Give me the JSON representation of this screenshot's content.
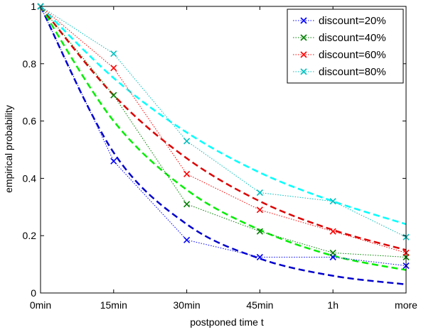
{
  "chart_data": {
    "type": "line",
    "title": "",
    "xlabel": "postponed time t",
    "ylabel": "empirical probability",
    "categories": [
      "0min",
      "15min",
      "30min",
      "45min",
      "1h",
      "more"
    ],
    "ylim": [
      0,
      1
    ],
    "yticks": [
      "0",
      "0.2",
      "0.4",
      "0.6",
      "0.8",
      "1"
    ],
    "grid": false,
    "legend_position": "top-right",
    "series": [
      {
        "name": "discount=20%",
        "color": "#0000ff",
        "empirical": [
          1.0,
          0.46,
          0.185,
          0.125,
          0.125,
          0.095
        ],
        "fit": [
          1.0,
          0.49,
          0.24,
          0.12,
          0.06,
          0.03
        ]
      },
      {
        "name": "discount=40%",
        "color": "#008000",
        "empirical": [
          1.0,
          0.69,
          0.31,
          0.215,
          0.14,
          0.125
        ],
        "fit": [
          1.0,
          0.6,
          0.36,
          0.22,
          0.13,
          0.08
        ]
      },
      {
        "name": "discount=60%",
        "color": "#ff0000",
        "empirical": [
          1.0,
          0.785,
          0.415,
          0.29,
          0.215,
          0.14
        ],
        "fit": [
          1.0,
          0.69,
          0.47,
          0.32,
          0.22,
          0.15
        ]
      },
      {
        "name": "discount=80%",
        "color": "#00bfbf",
        "empirical": [
          1.0,
          0.835,
          0.53,
          0.35,
          0.32,
          0.195
        ],
        "fit": [
          1.0,
          0.75,
          0.56,
          0.42,
          0.32,
          0.24
        ]
      }
    ],
    "fit_colors": [
      "#0000cc",
      "#00ee00",
      "#dd0000",
      "#00ffff"
    ]
  }
}
